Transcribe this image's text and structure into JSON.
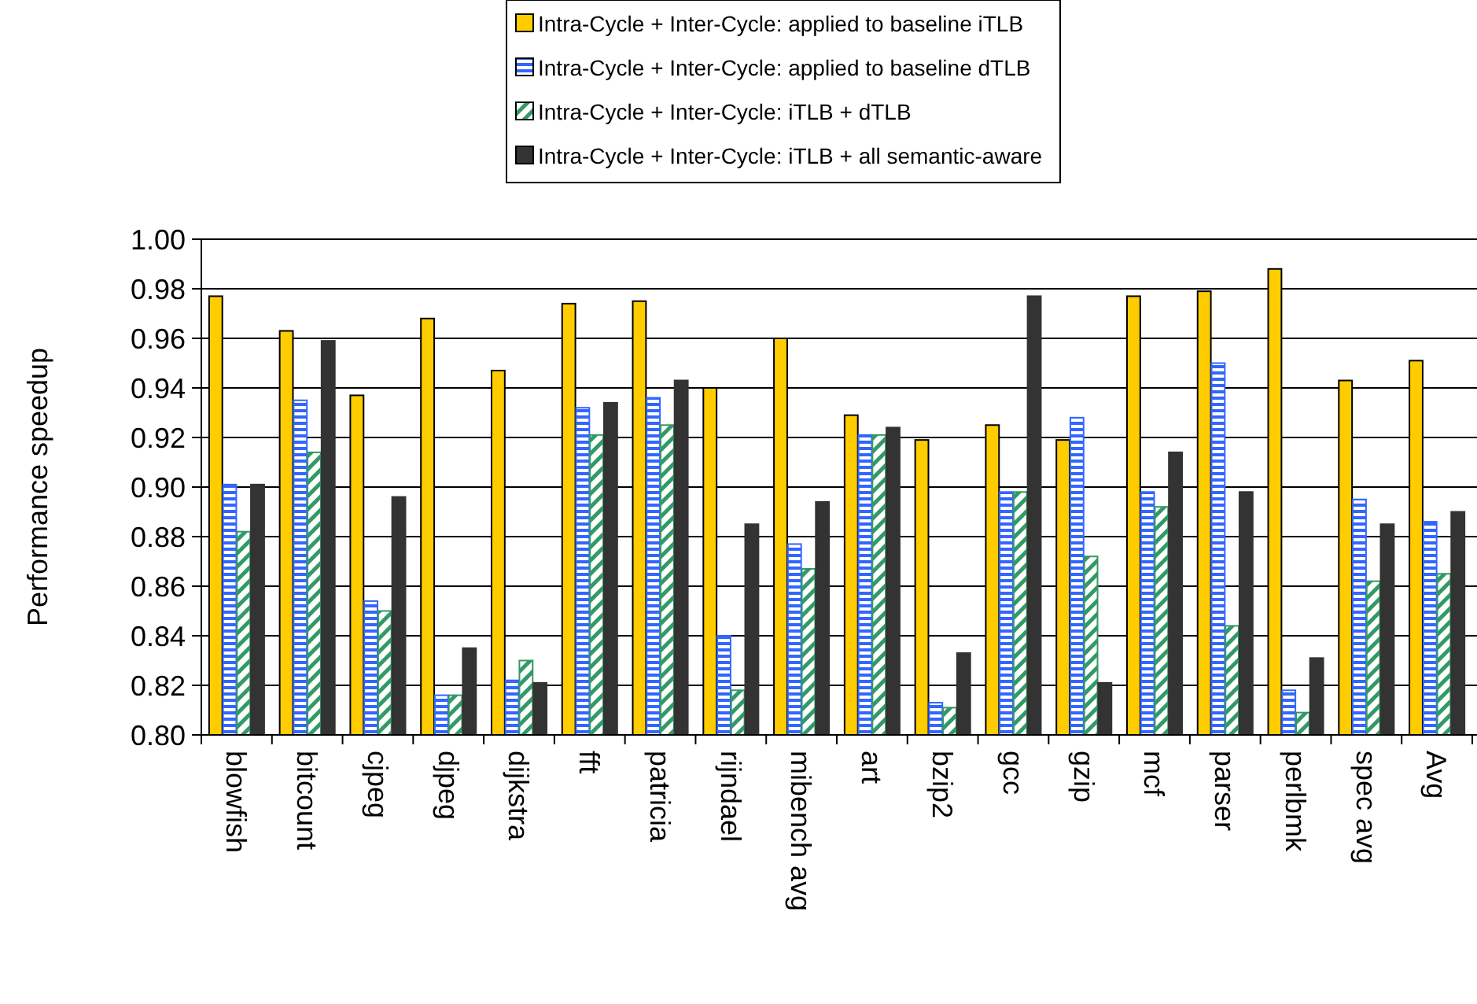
{
  "chart_data": {
    "type": "bar",
    "ylabel": "Performance speedup",
    "categories": [
      "blowfish",
      "bitcount",
      "cjpeg",
      "djpeg",
      "dijkstra",
      "fft",
      "patricia",
      "rijndael",
      "mibench avg",
      "art",
      "bzip2",
      "gcc",
      "gzip",
      "mcf",
      "parser",
      "perlbmk",
      "spec avg",
      "Avg"
    ],
    "series": [
      {
        "name": "Intra-Cycle + Inter-Cycle: applied to baseline iTLB",
        "color": "#ffcc00",
        "values": [
          0.977,
          0.963,
          0.937,
          0.968,
          0.947,
          0.974,
          0.975,
          0.94,
          0.96,
          0.929,
          0.919,
          0.925,
          0.919,
          0.977,
          0.979,
          0.988,
          0.943,
          0.951
        ]
      },
      {
        "name": "Intra-Cycle + Inter-Cycle: applied to baseline dTLB",
        "color": "#3366ff",
        "values": [
          0.901,
          0.935,
          0.854,
          0.816,
          0.822,
          0.932,
          0.936,
          0.84,
          0.877,
          0.921,
          0.813,
          0.898,
          0.928,
          0.898,
          0.95,
          0.818,
          0.895,
          0.886
        ]
      },
      {
        "name": "Intra-Cycle + Inter-Cycle: iTLB + dTLB",
        "color": "#339966",
        "values": [
          0.882,
          0.914,
          0.85,
          0.816,
          0.83,
          0.921,
          0.925,
          0.818,
          0.867,
          0.921,
          0.811,
          0.898,
          0.872,
          0.892,
          0.844,
          0.809,
          0.862,
          0.865
        ]
      },
      {
        "name": "Intra-Cycle + Inter-Cycle: iTLB + all semantic-aware",
        "color": "#333333",
        "values": [
          0.901,
          0.959,
          0.896,
          0.835,
          0.821,
          0.934,
          0.943,
          0.885,
          0.894,
          0.924,
          0.833,
          0.977,
          0.821,
          0.914,
          0.898,
          0.831,
          0.885,
          0.89
        ]
      }
    ],
    "ylim": [
      0.8,
      1.0
    ],
    "yticks": [
      {
        "value": 0.8,
        "label": "0.80"
      },
      {
        "value": 0.82,
        "label": "0.82"
      },
      {
        "value": 0.84,
        "label": "0.84"
      },
      {
        "value": 0.86,
        "label": "0.86"
      },
      {
        "value": 0.88,
        "label": "0.88"
      },
      {
        "value": 0.9,
        "label": "0.90"
      },
      {
        "value": 0.92,
        "label": "0.92"
      },
      {
        "value": 0.94,
        "label": "0.94"
      },
      {
        "value": 0.96,
        "label": "0.96"
      },
      {
        "value": 0.98,
        "label": "0.98"
      },
      {
        "value": 1.0,
        "label": "1.00"
      }
    ],
    "grid": "y",
    "legend": "top"
  }
}
